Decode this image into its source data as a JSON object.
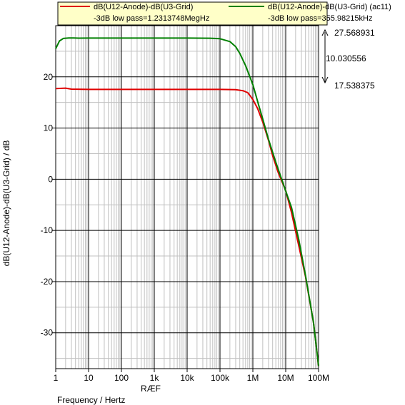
{
  "chart_data": {
    "type": "line",
    "x_scale": "log",
    "xlim": [
      1,
      100000000
    ],
    "ylim": [
      -37,
      30
    ],
    "grid": true,
    "legend_position": "top",
    "xlabel": "Frequency / Hertz",
    "ylabel": "dB(U12-Anode)-dB(U3-Grid) / dB",
    "x_extra_label": "RÆF",
    "x_ticks": [
      {
        "value": 1,
        "label": "1"
      },
      {
        "value": 10,
        "label": "10"
      },
      {
        "value": 100,
        "label": "100"
      },
      {
        "value": 1000,
        "label": "1k"
      },
      {
        "value": 10000,
        "label": "10k"
      },
      {
        "value": 100000,
        "label": "100k"
      },
      {
        "value": 1000000,
        "label": "1M"
      },
      {
        "value": 10000000,
        "label": "10M"
      },
      {
        "value": 100000000,
        "label": "100M"
      }
    ],
    "y_ticks": [
      {
        "value": 20,
        "label": "20"
      },
      {
        "value": 10,
        "label": "10"
      },
      {
        "value": 0,
        "label": "0"
      },
      {
        "value": -10,
        "label": "-10"
      },
      {
        "value": -20,
        "label": "-20"
      },
      {
        "value": -30,
        "label": "-30"
      }
    ],
    "series": [
      {
        "name": "dB(U12-Anode)-dB(U3-Grid)",
        "annotation": "-3dB low pass=1.2313748MegHz",
        "color": "#e00000",
        "x": [
          1,
          1.5,
          2,
          3,
          10,
          100,
          1000,
          10000,
          100000,
          300000,
          500000,
          700000,
          1000000,
          1400000,
          2000000,
          3000000,
          4000000,
          6000000,
          10000000,
          15000000,
          25000000,
          40000000,
          70000000,
          100000000
        ],
        "y": [
          17.7,
          17.75,
          17.8,
          17.6,
          17.55,
          17.55,
          17.55,
          17.55,
          17.55,
          17.5,
          17.3,
          16.9,
          15.6,
          13.8,
          11.2,
          7.6,
          4.6,
          1.2,
          -2.2,
          -6.5,
          -13,
          -19,
          -28,
          -36.5
        ]
      },
      {
        "name": "dB(U12-Anode)-dB(U3-Grid) (ac11)",
        "annotation": "-3dB low pass=355.98215kHz",
        "color": "#008000",
        "x": [
          1,
          1.3,
          1.7,
          2.5,
          3.5,
          5,
          10,
          100,
          1000,
          10000,
          50000,
          100000,
          200000,
          300000,
          400000,
          600000,
          1000000,
          1500000,
          2000000,
          3000000,
          5000000,
          10000000,
          15000000,
          25000000,
          40000000,
          70000000,
          100000000
        ],
        "y": [
          25.5,
          27,
          27.5,
          27.6,
          27.6,
          27.56,
          27.57,
          27.57,
          27.57,
          27.57,
          27.55,
          27.45,
          26.9,
          25.9,
          24.6,
          22.2,
          18.5,
          14.5,
          11.8,
          7.8,
          3.3,
          -2.3,
          -5.5,
          -11.8,
          -18.8,
          -28,
          -36.5
        ]
      }
    ],
    "cursor_readout": {
      "top_value": "27.568931",
      "delta_value": "10.030556",
      "bottom_value": "17.538375"
    }
  }
}
